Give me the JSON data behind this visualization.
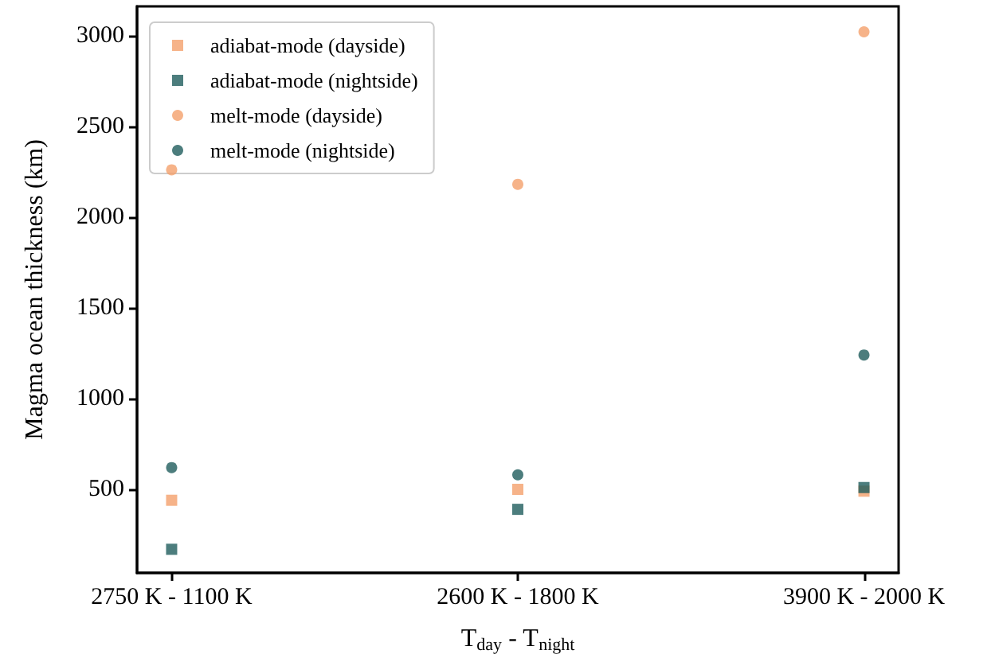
{
  "chart_data": {
    "type": "scatter",
    "xlabel": "T$_{day}$ - T$_{night}$",
    "ylabel": "Magma ocean thickness (km)",
    "categories": [
      "2750 K - 1100 K",
      "2600 K - 1800 K",
      "3900 K - 2000 K"
    ],
    "series": [
      {
        "name": "adiabat-mode (dayside)",
        "color": "#f4a06b",
        "marker": "square",
        "values": [
          440,
          500,
          490
        ]
      },
      {
        "name": "adiabat-mode (nightside)",
        "color": "#1f5c5c",
        "marker": "square",
        "values": [
          170,
          390,
          510
        ]
      },
      {
        "name": "melt-mode (dayside)",
        "color": "#f4a06b",
        "marker": "circle",
        "values": [
          2260,
          2180,
          3020
        ]
      },
      {
        "name": "melt-mode (nightside)",
        "color": "#1f5c5c",
        "marker": "circle",
        "values": [
          620,
          580,
          1240
        ]
      }
    ],
    "ylim": [
      40,
      3160
    ],
    "yticks": [
      500,
      1000,
      1500,
      2000,
      2500,
      3000
    ],
    "grid": false,
    "legend": "top left"
  }
}
